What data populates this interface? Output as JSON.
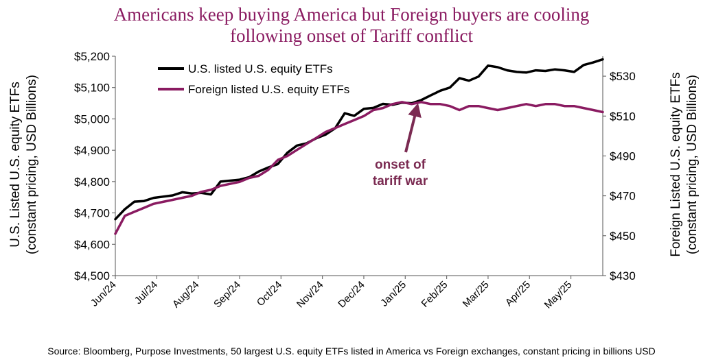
{
  "title_lines": [
    "Americans keep buying America but Foreign buyers are cooling",
    "following onset of Tariff conflict"
  ],
  "source": "Source: Bloomberg, Purpose Investments, 50 largest U.S. equity ETFs listed in America vs Foreign exchanges, constant pricing in billions USD",
  "annotation": {
    "lines": [
      "onset of",
      "tariff war"
    ],
    "color": "#7b2b52"
  },
  "colors": {
    "us": "#000000",
    "foreign": "#8a1b61",
    "title": "#8a1b61"
  },
  "chart_data": {
    "type": "line",
    "x": [
      0,
      1,
      2,
      3,
      4,
      5,
      6,
      7,
      8,
      9,
      10,
      11,
      12,
      13,
      14,
      15,
      16,
      17,
      18,
      19,
      20,
      21,
      22,
      23,
      24,
      25,
      26,
      27,
      28,
      29,
      30,
      31,
      32,
      33,
      34,
      35,
      36,
      37,
      38,
      39,
      40,
      41,
      42,
      43,
      44,
      45,
      46,
      47,
      48,
      49,
      50,
      51
    ],
    "x_tick_labels": [
      "Jun/24",
      "Jul/24",
      "Aug/24",
      "Sep/24",
      "Oct/24",
      "Nov/24",
      "Dec/24",
      "Jan/25",
      "Feb/25",
      "Mar/25",
      "Apr/25",
      "May/25"
    ],
    "x_tick_positions": [
      0,
      4.33,
      8.67,
      13,
      17.33,
      21.67,
      26,
      30.33,
      34.67,
      39,
      43.33,
      47.67
    ],
    "series": [
      {
        "name": "U.S. listed U.S. equity ETFs",
        "axis": "left",
        "values": [
          4680,
          4712,
          4736,
          4738,
          4748,
          4752,
          4756,
          4766,
          4762,
          4764,
          4759,
          4800,
          4803,
          4806,
          4814,
          4832,
          4845,
          4856,
          4892,
          4915,
          4922,
          4938,
          4950,
          4970,
          5018,
          5010,
          5032,
          5035,
          5048,
          5045,
          5052,
          5050,
          5060,
          5075,
          5090,
          5100,
          5130,
          5122,
          5135,
          5170,
          5165,
          5155,
          5150,
          5148,
          5155,
          5153,
          5158,
          5155,
          5150,
          5172,
          5180,
          5190
        ]
      },
      {
        "name": "Foreign listed U.S. equity ETFs",
        "axis": "right",
        "values": [
          451,
          460,
          462,
          464,
          466,
          467,
          468,
          469,
          470,
          472,
          473,
          475,
          476,
          477,
          479,
          480,
          483,
          488,
          490,
          493,
          496,
          499,
          502,
          504,
          506,
          508,
          510,
          513,
          514,
          516,
          517,
          516,
          517,
          516,
          516,
          515,
          513,
          515,
          515,
          514,
          513,
          514,
          515,
          516,
          515,
          516,
          516,
          515,
          515,
          514,
          513,
          512
        ]
      }
    ],
    "left_axis": {
      "label_lines": [
        "U.S. Listed U.S. equity ETFs",
        "(constant pricing, USD Billions)"
      ],
      "ylim": [
        4500,
        5200
      ],
      "ticks": [
        4500,
        4600,
        4700,
        4800,
        4900,
        5000,
        5100,
        5200
      ],
      "tick_labels": [
        "$4,500",
        "$4,600",
        "$4,700",
        "$4,800",
        "$4,900",
        "$5,000",
        "$5,100",
        "$5,200"
      ]
    },
    "right_axis": {
      "label_lines": [
        "Foreign Listed U.S. equity ETFs",
        "(constant pricing, USD Billions)"
      ],
      "ylim": [
        430,
        540
      ],
      "ticks": [
        430,
        450,
        470,
        490,
        510,
        530
      ],
      "tick_labels": [
        "$430",
        "$450",
        "$470",
        "$490",
        "$510",
        "$530"
      ]
    },
    "legend": {
      "placement": "top-left"
    }
  }
}
